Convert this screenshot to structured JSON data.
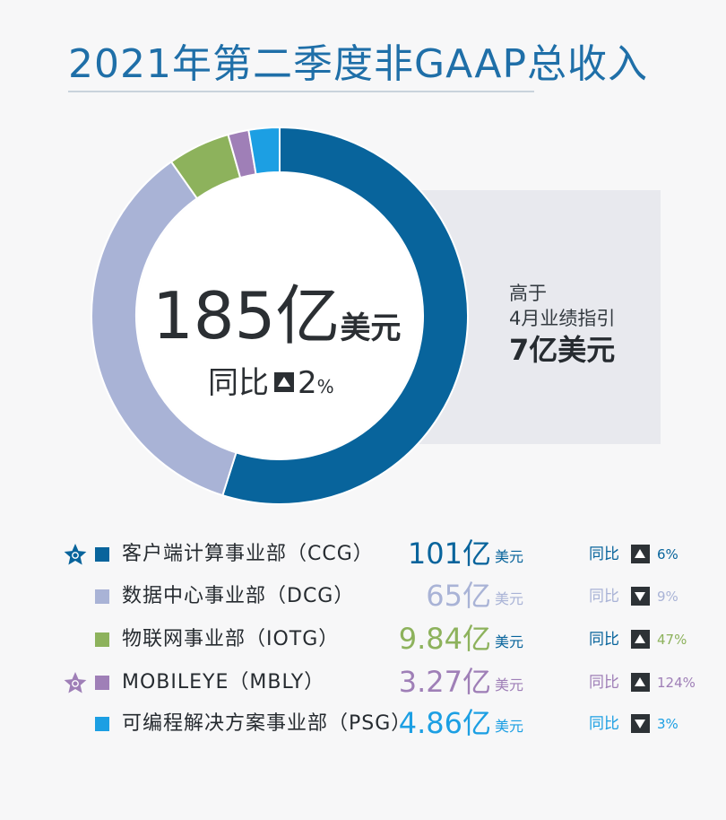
{
  "title": "2021年第二季度非GAAP总收入",
  "center": {
    "total_value": "185亿",
    "total_unit": "美元",
    "yoy_label": "同比",
    "yoy_value": "2",
    "yoy_unit": "%"
  },
  "guidance": {
    "line1": "高于",
    "line2": "4月业绩指引",
    "amount": "7亿美元"
  },
  "colors": {
    "ccg": "#08649c",
    "dcg": "#a9b3d6",
    "iotg": "#8db25c",
    "mbly": "#9f7fb7",
    "psg": "#1c9fe3"
  },
  "chart_data": {
    "type": "pie",
    "title": "2021年第二季度非GAAP总收入",
    "unit": "亿美元",
    "categories": [
      "客户端计算事业部（CCG）",
      "数据中心事业部（DCG）",
      "物联网事业部（IOTG）",
      "MOBILEYE（MBLY）",
      "可编程解决方案事业部（PSG）"
    ],
    "values": [
      101,
      65,
      9.84,
      3.27,
      4.86
    ],
    "series": [
      {
        "key": "ccg",
        "value": 101,
        "yoy_direction": "up",
        "yoy_pct": "6%"
      },
      {
        "key": "dcg",
        "value": 65,
        "yoy_direction": "down",
        "yoy_pct": "9%"
      },
      {
        "key": "iotg",
        "value": 9.84,
        "yoy_direction": "up",
        "yoy_pct": "47%"
      },
      {
        "key": "mbly",
        "value": 3.27,
        "yoy_direction": "up",
        "yoy_pct": "124%"
      },
      {
        "key": "psg",
        "value": 4.86,
        "yoy_direction": "down",
        "yoy_pct": "3%"
      }
    ],
    "legend": "bottom"
  },
  "segments": [
    {
      "key": "ccg",
      "name": "客户端计算事业部（CCG）",
      "amount": "101亿",
      "unit": "美元",
      "yoy_label": "同比",
      "yoy_pct": "6%",
      "direction": "up",
      "star": true,
      "color": "#08649c",
      "text_color": "#08649c",
      "meta_color": "#08649c",
      "pct_color": "#08649c",
      "icon": "star-icon"
    },
    {
      "key": "dcg",
      "name": "数据中心事业部（DCG）",
      "amount": "65亿",
      "unit": "美元",
      "yoy_label": "同比",
      "yoy_pct": "9%",
      "direction": "down",
      "star": false,
      "color": "#a9b3d6",
      "text_color": "#a9b3d6",
      "meta_color": "#a9b3d6",
      "pct_color": "#a9b3d6",
      "icon": ""
    },
    {
      "key": "iotg",
      "name": "物联网事业部（IOTG）",
      "amount": "9.84亿",
      "unit": "美元",
      "yoy_label": "同比",
      "yoy_pct": "47%",
      "direction": "up",
      "star": false,
      "color": "#8db25c",
      "text_color": "#8db25c",
      "meta_color": "#08649c",
      "pct_color": "#8db25c",
      "icon": ""
    },
    {
      "key": "mbly",
      "name": "MOBILEYE（MBLY）",
      "amount": "3.27亿",
      "unit": "美元",
      "yoy_label": "同比",
      "yoy_pct": "124%",
      "direction": "up",
      "star": true,
      "color": "#9f7fb7",
      "text_color": "#9f7fb7",
      "meta_color": "#9f7fb7",
      "pct_color": "#9f7fb7",
      "icon": "star-icon"
    },
    {
      "key": "psg",
      "name": "可编程解决方案事业部（PSG）",
      "amount": "4.86亿",
      "unit": "美元",
      "yoy_label": "同比",
      "yoy_pct": "3%",
      "direction": "down",
      "star": false,
      "color": "#1c9fe3",
      "text_color": "#1c9fe3",
      "meta_color": "#1c9fe3",
      "pct_color": "#1c9fe3",
      "icon": ""
    }
  ]
}
